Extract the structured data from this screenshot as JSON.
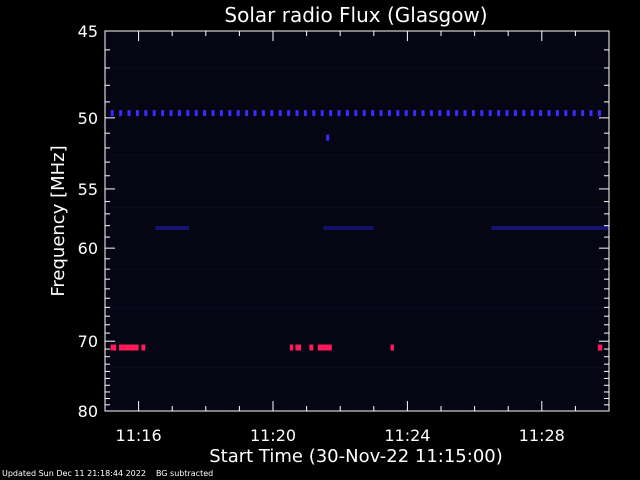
{
  "chart_data": {
    "type": "heatmap",
    "title": "Solar radio Flux (Glasgow)",
    "xlabel": "Start Time (30-Nov-22 11:15:00)",
    "ylabel": "Frequency [MHz]",
    "x_range": [
      "11:15:00",
      "11:30:00"
    ],
    "y_range": [
      45,
      80
    ],
    "x_ticks": [
      "11:16",
      "11:20",
      "11:24",
      "11:28"
    ],
    "y_ticks": [
      "45",
      "50",
      "55",
      "60",
      "70",
      "80"
    ],
    "y_tick_values": [
      45,
      50,
      55,
      60,
      70,
      80
    ],
    "y_scale": "reciprocal",
    "background_color": "#050514",
    "features": [
      {
        "kind": "dotted-band",
        "frequency_mhz": 49.7,
        "start": "11:15:12",
        "end": "11:29:55",
        "color": "#3a2cff",
        "spacing_s": 15
      },
      {
        "kind": "faint-band",
        "frequency_mhz": 58.2,
        "start": "11:16:30",
        "end": "11:17:30",
        "color": "#141470"
      },
      {
        "kind": "faint-band",
        "frequency_mhz": 58.2,
        "start": "11:21:30",
        "end": "11:23:00",
        "color": "#121266"
      },
      {
        "kind": "faint-band",
        "frequency_mhz": 58.2,
        "start": "11:26:30",
        "end": "11:30:00",
        "color": "#141470"
      },
      {
        "kind": "burst",
        "frequency_mhz": 51.3,
        "start": "11:21:35",
        "end": "11:21:40",
        "color": "#3a2cff"
      },
      {
        "kind": "burst",
        "frequency_mhz": 70.8,
        "start": "11:15:10",
        "end": "11:15:20",
        "color": "#ff1a5a"
      },
      {
        "kind": "burst",
        "frequency_mhz": 70.8,
        "start": "11:15:25",
        "end": "11:16:00",
        "color": "#ff1a5a"
      },
      {
        "kind": "burst",
        "frequency_mhz": 70.8,
        "start": "11:16:05",
        "end": "11:16:12",
        "color": "#ff1a5a"
      },
      {
        "kind": "burst",
        "frequency_mhz": 70.8,
        "start": "11:20:30",
        "end": "11:20:36",
        "color": "#ff1a5a"
      },
      {
        "kind": "burst",
        "frequency_mhz": 70.8,
        "start": "11:20:40",
        "end": "11:20:50",
        "color": "#ff1a5a"
      },
      {
        "kind": "burst",
        "frequency_mhz": 70.8,
        "start": "11:21:05",
        "end": "11:21:12",
        "color": "#ff1a5a"
      },
      {
        "kind": "burst",
        "frequency_mhz": 70.8,
        "start": "11:21:20",
        "end": "11:21:45",
        "color": "#ff1a5a"
      },
      {
        "kind": "burst",
        "frequency_mhz": 70.8,
        "start": "11:23:30",
        "end": "11:23:36",
        "color": "#ff1a5a"
      },
      {
        "kind": "burst",
        "frequency_mhz": 70.8,
        "start": "11:29:40",
        "end": "11:29:48",
        "color": "#ff1a5a"
      }
    ]
  },
  "footer": {
    "updated": "Updated Sun Dec 11 21:18:44 2022",
    "note": "BG subtracted"
  }
}
